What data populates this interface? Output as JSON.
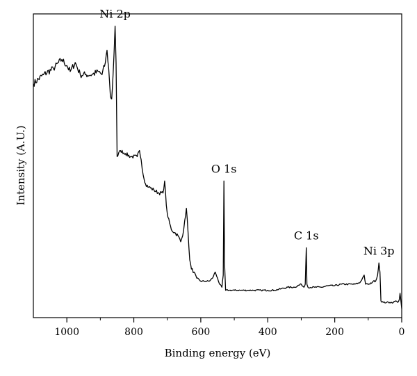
{
  "chart_data": {
    "type": "line",
    "title": "",
    "xlabel": "Binding energy (eV)",
    "ylabel": "Intensity (A.U.)",
    "xlim": [
      1100,
      0
    ],
    "x_reversed": true,
    "ylim": [
      0,
      100
    ],
    "y_ticks_shown": false,
    "grid": false,
    "legend": "none",
    "x_ticks": [
      1000,
      800,
      600,
      400,
      200,
      0
    ],
    "x_tick_labels": [
      "1000",
      "800",
      "600",
      "400",
      "200",
      "0"
    ],
    "line_color": "#000000",
    "series": [
      {
        "points": [
          [
            1100,
            77
          ],
          [
            1070,
            80
          ],
          [
            1040,
            82
          ],
          [
            1015,
            85
          ],
          [
            1000,
            83
          ],
          [
            990,
            81
          ],
          [
            975,
            84
          ],
          [
            960,
            80
          ],
          [
            945,
            80
          ],
          [
            925,
            80
          ],
          [
            905,
            81
          ],
          [
            895,
            80
          ],
          [
            885,
            84
          ],
          [
            880,
            88
          ],
          [
            875,
            82
          ],
          [
            870,
            73
          ],
          [
            866,
            72
          ],
          [
            862,
            80
          ],
          [
            859,
            87
          ],
          [
            856,
            96
          ],
          [
            853,
            84
          ],
          [
            850,
            53
          ],
          [
            840,
            55
          ],
          [
            825,
            54
          ],
          [
            810,
            53
          ],
          [
            790,
            53
          ],
          [
            783,
            55
          ],
          [
            778,
            52
          ],
          [
            772,
            47
          ],
          [
            765,
            44
          ],
          [
            755,
            43
          ],
          [
            740,
            42
          ],
          [
            725,
            41
          ],
          [
            713,
            41
          ],
          [
            708,
            45
          ],
          [
            703,
            37
          ],
          [
            698,
            33
          ],
          [
            688,
            29
          ],
          [
            678,
            28
          ],
          [
            668,
            27
          ],
          [
            660,
            25
          ],
          [
            654,
            27
          ],
          [
            648,
            32
          ],
          [
            643,
            36
          ],
          [
            638,
            28
          ],
          [
            633,
            19
          ],
          [
            628,
            16
          ],
          [
            620,
            15
          ],
          [
            612,
            13
          ],
          [
            600,
            12
          ],
          [
            585,
            12
          ],
          [
            575,
            12
          ],
          [
            565,
            13
          ],
          [
            557,
            15
          ],
          [
            550,
            13
          ],
          [
            544,
            11
          ],
          [
            537,
            10
          ],
          [
            533,
            14
          ],
          [
            531,
            45
          ],
          [
            529,
            18
          ],
          [
            526,
            9
          ],
          [
            515,
            9
          ],
          [
            500,
            9
          ],
          [
            480,
            9
          ],
          [
            460,
            9
          ],
          [
            440,
            9
          ],
          [
            420,
            9
          ],
          [
            400,
            9
          ],
          [
            380,
            9
          ],
          [
            360,
            9.5
          ],
          [
            340,
            10
          ],
          [
            320,
            10
          ],
          [
            300,
            11
          ],
          [
            292,
            10
          ],
          [
            288,
            11
          ],
          [
            285,
            23
          ],
          [
            283,
            11
          ],
          [
            280,
            10
          ],
          [
            260,
            10
          ],
          [
            240,
            10
          ],
          [
            220,
            10.5
          ],
          [
            200,
            10.5
          ],
          [
            180,
            11
          ],
          [
            160,
            11
          ],
          [
            140,
            11
          ],
          [
            125,
            11.5
          ],
          [
            117,
            13
          ],
          [
            112,
            14
          ],
          [
            108,
            11
          ],
          [
            95,
            11
          ],
          [
            85,
            12
          ],
          [
            78,
            12
          ],
          [
            72,
            14
          ],
          [
            68,
            18
          ],
          [
            65,
            15
          ],
          [
            62,
            5.5
          ],
          [
            55,
            5
          ],
          [
            45,
            5
          ],
          [
            35,
            5
          ],
          [
            25,
            5
          ],
          [
            18,
            5.5
          ],
          [
            12,
            5
          ],
          [
            7,
            6
          ],
          [
            5,
            8
          ],
          [
            3,
            6
          ],
          [
            0,
            3
          ]
        ]
      }
    ],
    "annotations": [
      {
        "text": "Ni 2p",
        "x": 856,
        "y": 96
      },
      {
        "text": "O 1s",
        "x": 531,
        "y": 45
      },
      {
        "text": "C 1s",
        "x": 285,
        "y": 23
      },
      {
        "text": "Ni 3p",
        "x": 68,
        "y": 18
      }
    ]
  }
}
